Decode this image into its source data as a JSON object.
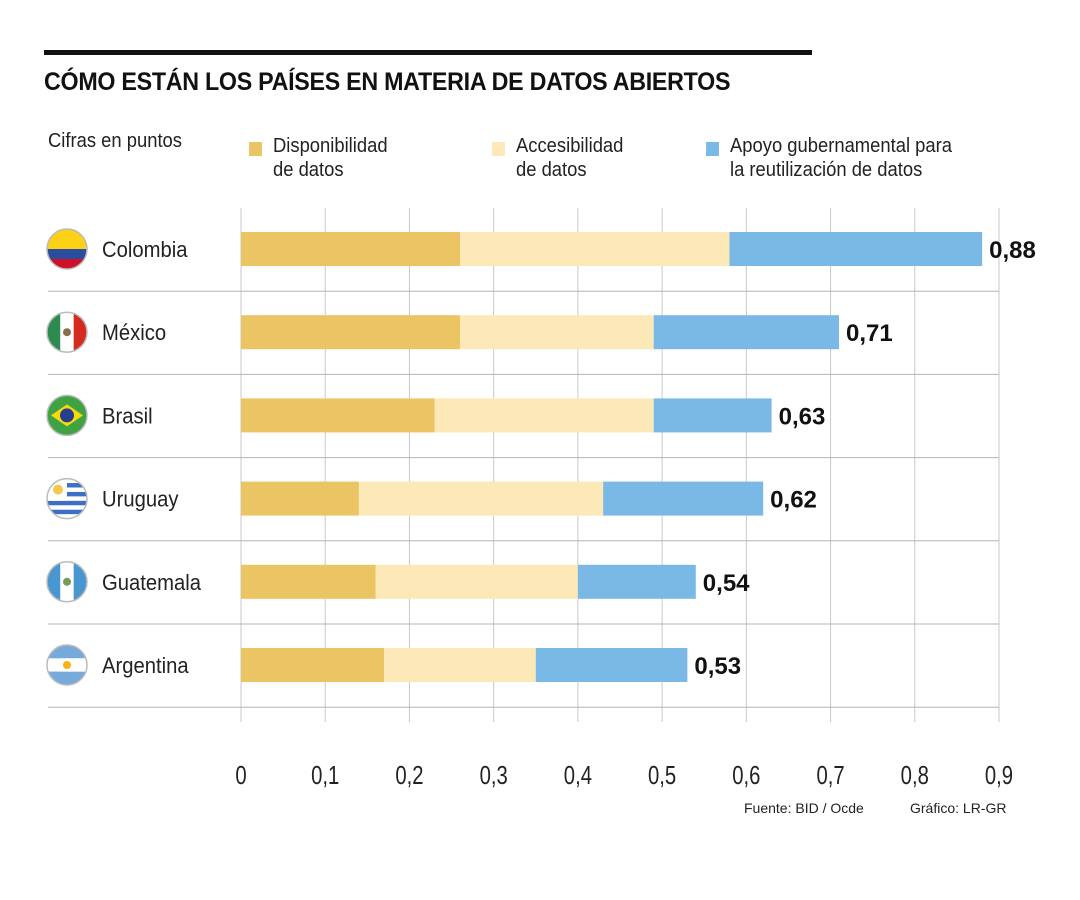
{
  "chart_data": {
    "type": "bar",
    "orientation": "horizontal",
    "stacked": true,
    "title": "CÓMO ESTÁN LOS PAÍSES EN MATERIA DE DATOS ABIERTOS",
    "subtitle": "Cifras en puntos",
    "categories": [
      "Colombia",
      "México",
      "Brasil",
      "Uruguay",
      "Guatemala",
      "Argentina"
    ],
    "series": [
      {
        "name": "Disponibilidad de datos",
        "color": "#ebc463",
        "values": [
          0.26,
          0.26,
          0.23,
          0.14,
          0.16,
          0.17
        ]
      },
      {
        "name": "Accesibilidad de datos",
        "color": "#fde9b8",
        "values": [
          0.32,
          0.23,
          0.26,
          0.29,
          0.24,
          0.18
        ]
      },
      {
        "name": "Apoyo gubernamental para la reutilización de datos",
        "color": "#7ab9e6",
        "values": [
          0.3,
          0.22,
          0.14,
          0.19,
          0.14,
          0.18
        ]
      }
    ],
    "totals": [
      "0,88",
      "0,71",
      "0,63",
      "0,62",
      "0,54",
      "0,53"
    ],
    "xlim": [
      0,
      0.9
    ],
    "xticks": [
      "0",
      "0,1",
      "0,2",
      "0,3",
      "0,4",
      "0,5",
      "0,6",
      "0,7",
      "0,8",
      "0,9"
    ],
    "grid": true,
    "legend_placement": "top",
    "flags": [
      "colombia-flag",
      "mexico-flag",
      "brazil-flag",
      "uruguay-flag",
      "guatemala-flag",
      "argentina-flag"
    ]
  },
  "legend": {
    "items": [
      "Disponibilidad\nde datos",
      "Accesibilidad\nde datos",
      "Apoyo gubernamental para\nla reutilización de datos"
    ]
  },
  "footer": {
    "source": "Fuente: BID / Ocde",
    "credit": "Gráfico: LR-GR"
  }
}
